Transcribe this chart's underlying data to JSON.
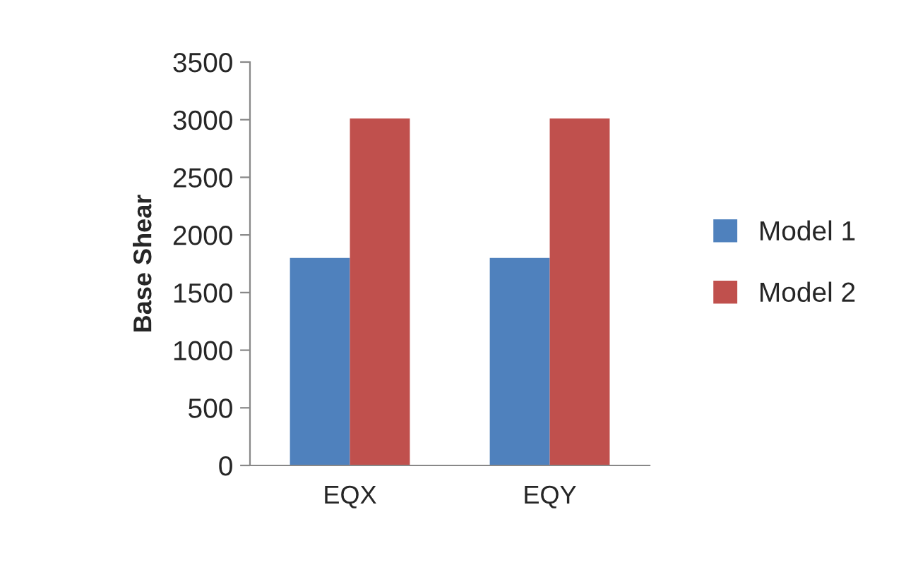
{
  "chart_data": {
    "type": "bar",
    "ylabel": "Base Shear",
    "categories": [
      "EQX",
      "EQY"
    ],
    "series": [
      {
        "name": "Model 1",
        "color": "#4f81bd",
        "values": [
          1800,
          1800
        ]
      },
      {
        "name": "Model 2",
        "color": "#c0504d",
        "values": [
          3010,
          3010
        ]
      }
    ],
    "ylim": [
      0,
      3500
    ],
    "yticks": [
      0,
      500,
      1000,
      1500,
      2000,
      2500,
      3000,
      3500
    ],
    "grid": false,
    "legend": "right"
  }
}
